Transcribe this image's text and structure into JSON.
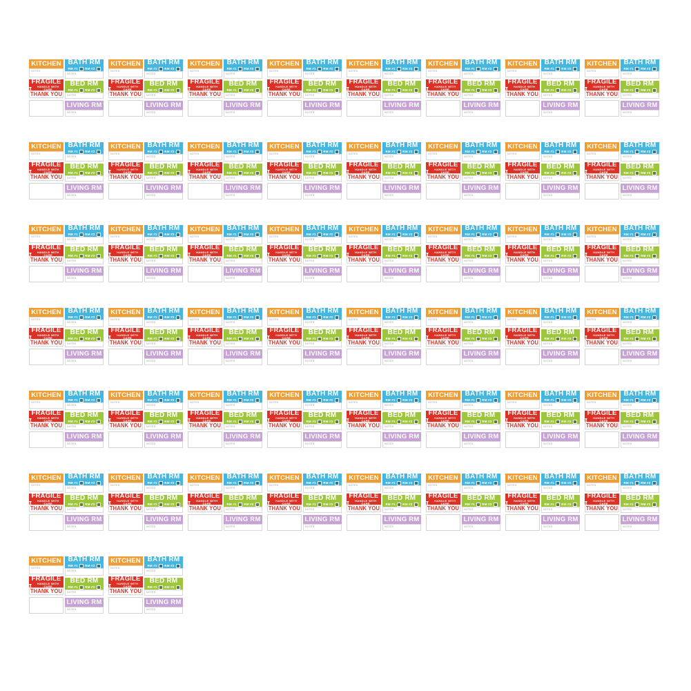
{
  "page": {
    "background": "#ffffff",
    "description": "Grid of identical color-coded home moving label sticker sheets"
  },
  "grid": {
    "rows_units": [
      8,
      8,
      8,
      8,
      8,
      8,
      2
    ]
  },
  "sheet": {
    "notes_label": "NOTES",
    "kitchen": {
      "title": "KITCHEN",
      "color": "#EF9D31"
    },
    "bath": {
      "title": "BATH RM",
      "rm1": "RM #1",
      "rm2": "RM #2",
      "color": "#44B6DF"
    },
    "fragile": {
      "title": "FRAGILE",
      "sub": "HANDLE WITH CARE",
      "thank_you": "THANK YOU",
      "color": "#DE3126",
      "thank_you_color": "#DE3126"
    },
    "bed": {
      "title": "BED RM",
      "rm1": "RM #1",
      "rm2": "RM #2",
      "color": "#9DC63C"
    },
    "living": {
      "title": "LIVING RM",
      "color": "#C6A3D4"
    }
  }
}
